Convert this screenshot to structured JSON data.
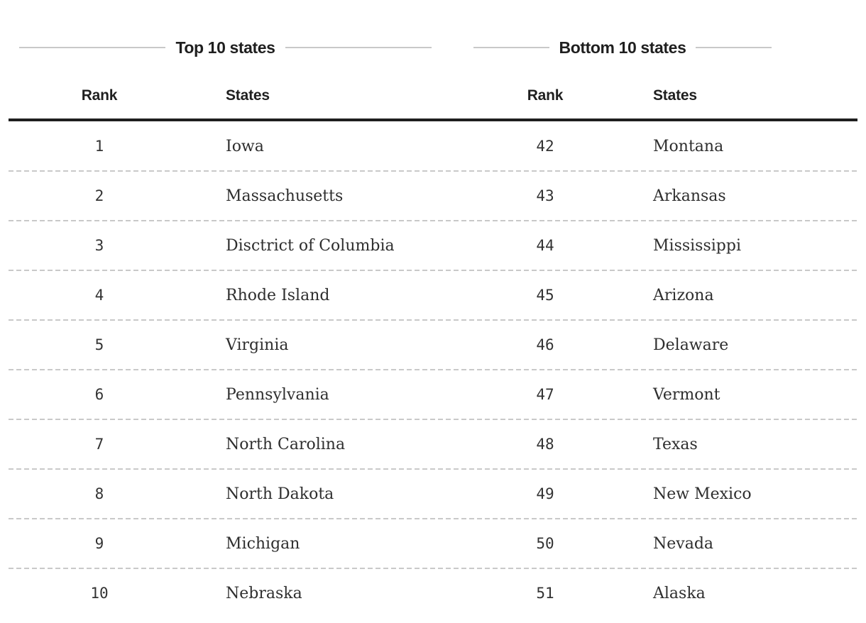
{
  "figure": {
    "background": "#ffffff",
    "colors": {
      "heading_text": "#1f1f1f",
      "rank_text": "#333333",
      "state_text": "#2e2e2e",
      "heavy_rule": "#1f1f1f",
      "dashed_rule": "#c9c9c9",
      "title_flank_line": "#c9c9c9"
    }
  },
  "tables": [
    {
      "title": "Top 10 states",
      "columns": {
        "rank": "Rank",
        "states": "States"
      },
      "rows": [
        {
          "rank": "1",
          "state": "Iowa"
        },
        {
          "rank": "2",
          "state": "Massachusetts"
        },
        {
          "rank": "3",
          "state": "Disctrict of Columbia"
        },
        {
          "rank": "4",
          "state": "Rhode Island"
        },
        {
          "rank": "5",
          "state": "Virginia"
        },
        {
          "rank": "6",
          "state": "Pennsylvania"
        },
        {
          "rank": "7",
          "state": "North Carolina"
        },
        {
          "rank": "8",
          "state": "North Dakota"
        },
        {
          "rank": "9",
          "state": "Michigan"
        },
        {
          "rank": "10",
          "state": "Nebraska"
        }
      ]
    },
    {
      "title": "Bottom 10 states",
      "columns": {
        "rank": "Rank",
        "states": "States"
      },
      "rows": [
        {
          "rank": "42",
          "state": "Montana"
        },
        {
          "rank": "43",
          "state": "Arkansas"
        },
        {
          "rank": "44",
          "state": "Mississippi"
        },
        {
          "rank": "45",
          "state": "Arizona"
        },
        {
          "rank": "46",
          "state": "Delaware"
        },
        {
          "rank": "47",
          "state": "Vermont"
        },
        {
          "rank": "48",
          "state": "Texas"
        },
        {
          "rank": "49",
          "state": "New Mexico"
        },
        {
          "rank": "50",
          "state": "Nevada"
        },
        {
          "rank": "51",
          "state": "Alaska"
        }
      ]
    }
  ],
  "chart_data": {
    "type": "table",
    "tables": [
      {
        "title": "Top 10 states",
        "columns": [
          "Rank",
          "States"
        ],
        "rows": [
          [
            1,
            "Iowa"
          ],
          [
            2,
            "Massachusetts"
          ],
          [
            3,
            "Disctrict of Columbia"
          ],
          [
            4,
            "Rhode Island"
          ],
          [
            5,
            "Virginia"
          ],
          [
            6,
            "Pennsylvania"
          ],
          [
            7,
            "North Carolina"
          ],
          [
            8,
            "North Dakota"
          ],
          [
            9,
            "Michigan"
          ],
          [
            10,
            "Nebraska"
          ]
        ]
      },
      {
        "title": "Bottom 10 states",
        "columns": [
          "Rank",
          "States"
        ],
        "rows": [
          [
            42,
            "Montana"
          ],
          [
            43,
            "Arkansas"
          ],
          [
            44,
            "Mississippi"
          ],
          [
            45,
            "Arizona"
          ],
          [
            46,
            "Delaware"
          ],
          [
            47,
            "Vermont"
          ],
          [
            48,
            "Texas"
          ],
          [
            49,
            "New Mexico"
          ],
          [
            50,
            "Nevada"
          ],
          [
            51,
            "Alaska"
          ]
        ]
      }
    ],
    "layout": "two side-by-side ranking tables sharing one header rule and full-width dashed row separators",
    "notes": "State name in rank 3 is spelled 'Disctrict of Columbia' in the source image"
  }
}
